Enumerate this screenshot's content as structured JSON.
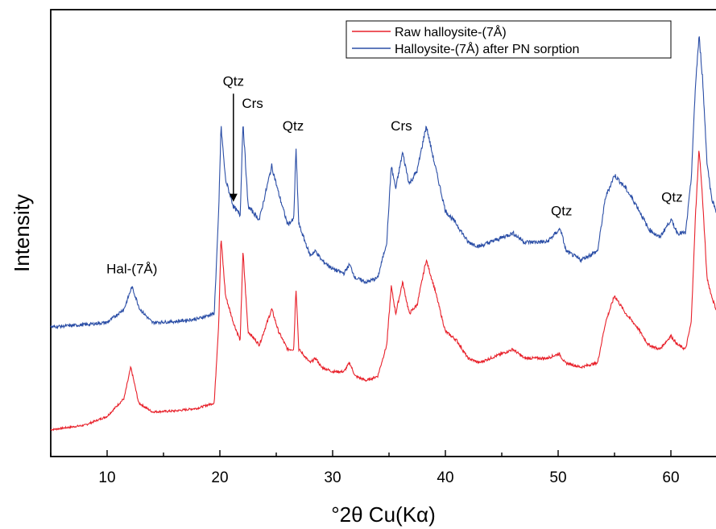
{
  "chart_data": {
    "type": "line",
    "xlabel": "°2θ Cu(Kα)",
    "ylabel": "Intensity",
    "xlim": [
      5,
      64
    ],
    "ylim": [
      0,
      100
    ],
    "x_ticks": [
      10,
      20,
      30,
      40,
      50,
      60
    ],
    "grid": false,
    "legend_position": "top-right",
    "series": [
      {
        "name": "Raw halloysite-(7Å)",
        "color": "#e8202a",
        "points": [
          [
            5,
            6
          ],
          [
            8,
            7
          ],
          [
            10,
            9
          ],
          [
            11.5,
            13
          ],
          [
            12.1,
            20
          ],
          [
            12.8,
            12
          ],
          [
            14,
            10
          ],
          [
            16,
            10.2
          ],
          [
            18,
            10.8
          ],
          [
            19.5,
            12
          ],
          [
            19.9,
            30
          ],
          [
            20.1,
            49
          ],
          [
            20.5,
            36
          ],
          [
            21.2,
            30
          ],
          [
            21.8,
            26
          ],
          [
            22.05,
            46
          ],
          [
            22.5,
            28
          ],
          [
            23.5,
            25
          ],
          [
            24.6,
            33
          ],
          [
            25.2,
            28
          ],
          [
            26,
            24
          ],
          [
            26.55,
            24
          ],
          [
            26.75,
            38
          ],
          [
            27.0,
            24
          ],
          [
            28,
            21
          ],
          [
            28.5,
            22
          ],
          [
            29,
            20
          ],
          [
            30,
            19
          ],
          [
            31,
            19
          ],
          [
            31.5,
            21
          ],
          [
            32,
            18
          ],
          [
            33,
            17
          ],
          [
            34,
            18
          ],
          [
            34.8,
            25
          ],
          [
            35.2,
            38
          ],
          [
            35.6,
            32
          ],
          [
            36.2,
            39
          ],
          [
            36.8,
            32
          ],
          [
            37.5,
            34
          ],
          [
            38.3,
            44
          ],
          [
            39,
            38
          ],
          [
            40,
            28
          ],
          [
            41,
            26
          ],
          [
            42,
            22
          ],
          [
            43,
            21
          ],
          [
            44,
            22
          ],
          [
            45,
            23
          ],
          [
            46,
            24
          ],
          [
            47,
            22
          ],
          [
            48,
            22
          ],
          [
            49,
            22
          ],
          [
            50.1,
            23
          ],
          [
            50.6,
            21
          ],
          [
            52,
            20
          ],
          [
            53.5,
            21
          ],
          [
            54.2,
            30
          ],
          [
            55,
            36
          ],
          [
            56,
            32
          ],
          [
            57,
            29
          ],
          [
            58,
            25
          ],
          [
            59,
            24
          ],
          [
            60,
            27
          ],
          [
            60.6,
            25
          ],
          [
            61.3,
            24
          ],
          [
            61.8,
            30
          ],
          [
            62.2,
            55
          ],
          [
            62.5,
            69
          ],
          [
            62.8,
            58
          ],
          [
            63.2,
            40
          ],
          [
            63.6,
            36
          ],
          [
            64,
            33
          ]
        ]
      },
      {
        "name": "Halloysite-(7Å) after PN sorption",
        "color": "#2b4ea6",
        "points": [
          [
            5,
            29
          ],
          [
            8,
            29.5
          ],
          [
            10,
            30
          ],
          [
            11.5,
            33
          ],
          [
            12.2,
            38
          ],
          [
            12.9,
            33
          ],
          [
            14,
            30
          ],
          [
            16,
            30.2
          ],
          [
            18,
            30.8
          ],
          [
            19.5,
            32
          ],
          [
            19.9,
            55
          ],
          [
            20.1,
            74
          ],
          [
            20.5,
            62
          ],
          [
            21.2,
            56
          ],
          [
            21.8,
            54
          ],
          [
            22.05,
            75
          ],
          [
            22.5,
            56
          ],
          [
            23.5,
            53
          ],
          [
            24.6,
            65
          ],
          [
            25.2,
            59
          ],
          [
            26,
            52
          ],
          [
            26.55,
            53
          ],
          [
            26.75,
            69
          ],
          [
            27.0,
            52
          ],
          [
            28,
            45
          ],
          [
            28.5,
            46
          ],
          [
            29,
            44
          ],
          [
            30,
            42
          ],
          [
            31,
            41
          ],
          [
            31.5,
            43
          ],
          [
            32,
            40
          ],
          [
            33,
            39
          ],
          [
            34,
            40
          ],
          [
            34.8,
            48
          ],
          [
            35.2,
            65
          ],
          [
            35.6,
            60
          ],
          [
            36.2,
            68
          ],
          [
            36.8,
            61
          ],
          [
            37.5,
            64
          ],
          [
            38.3,
            74
          ],
          [
            39,
            66
          ],
          [
            40,
            55
          ],
          [
            41,
            52
          ],
          [
            42,
            48
          ],
          [
            43,
            47
          ],
          [
            44,
            48
          ],
          [
            45,
            49
          ],
          [
            46,
            50
          ],
          [
            47,
            48
          ],
          [
            48,
            48
          ],
          [
            49,
            48
          ],
          [
            50.2,
            51
          ],
          [
            50.7,
            46
          ],
          [
            52,
            44
          ],
          [
            53.5,
            46
          ],
          [
            54.2,
            58
          ],
          [
            55,
            63
          ],
          [
            56,
            60
          ],
          [
            57,
            56
          ],
          [
            58,
            51
          ],
          [
            59,
            49
          ],
          [
            60,
            53
          ],
          [
            60.6,
            50
          ],
          [
            61.3,
            50
          ],
          [
            61.8,
            62
          ],
          [
            62.2,
            84
          ],
          [
            62.5,
            94
          ],
          [
            62.8,
            85
          ],
          [
            63.2,
            66
          ],
          [
            63.6,
            58
          ],
          [
            64,
            55
          ]
        ]
      }
    ],
    "annotations": [
      {
        "text": "Hal-(7Å)",
        "x": 12.2,
        "y": 41
      },
      {
        "text": "Qtz",
        "x": 21.2,
        "y": 83,
        "arrow_to_y": 57
      },
      {
        "text": "Crs",
        "x": 22.9,
        "y": 78
      },
      {
        "text": "Qtz",
        "x": 26.5,
        "y": 73
      },
      {
        "text": "Crs",
        "x": 36.1,
        "y": 73
      },
      {
        "text": "Qtz",
        "x": 50.3,
        "y": 54
      },
      {
        "text": "Qtz",
        "x": 60.1,
        "y": 57
      }
    ]
  }
}
